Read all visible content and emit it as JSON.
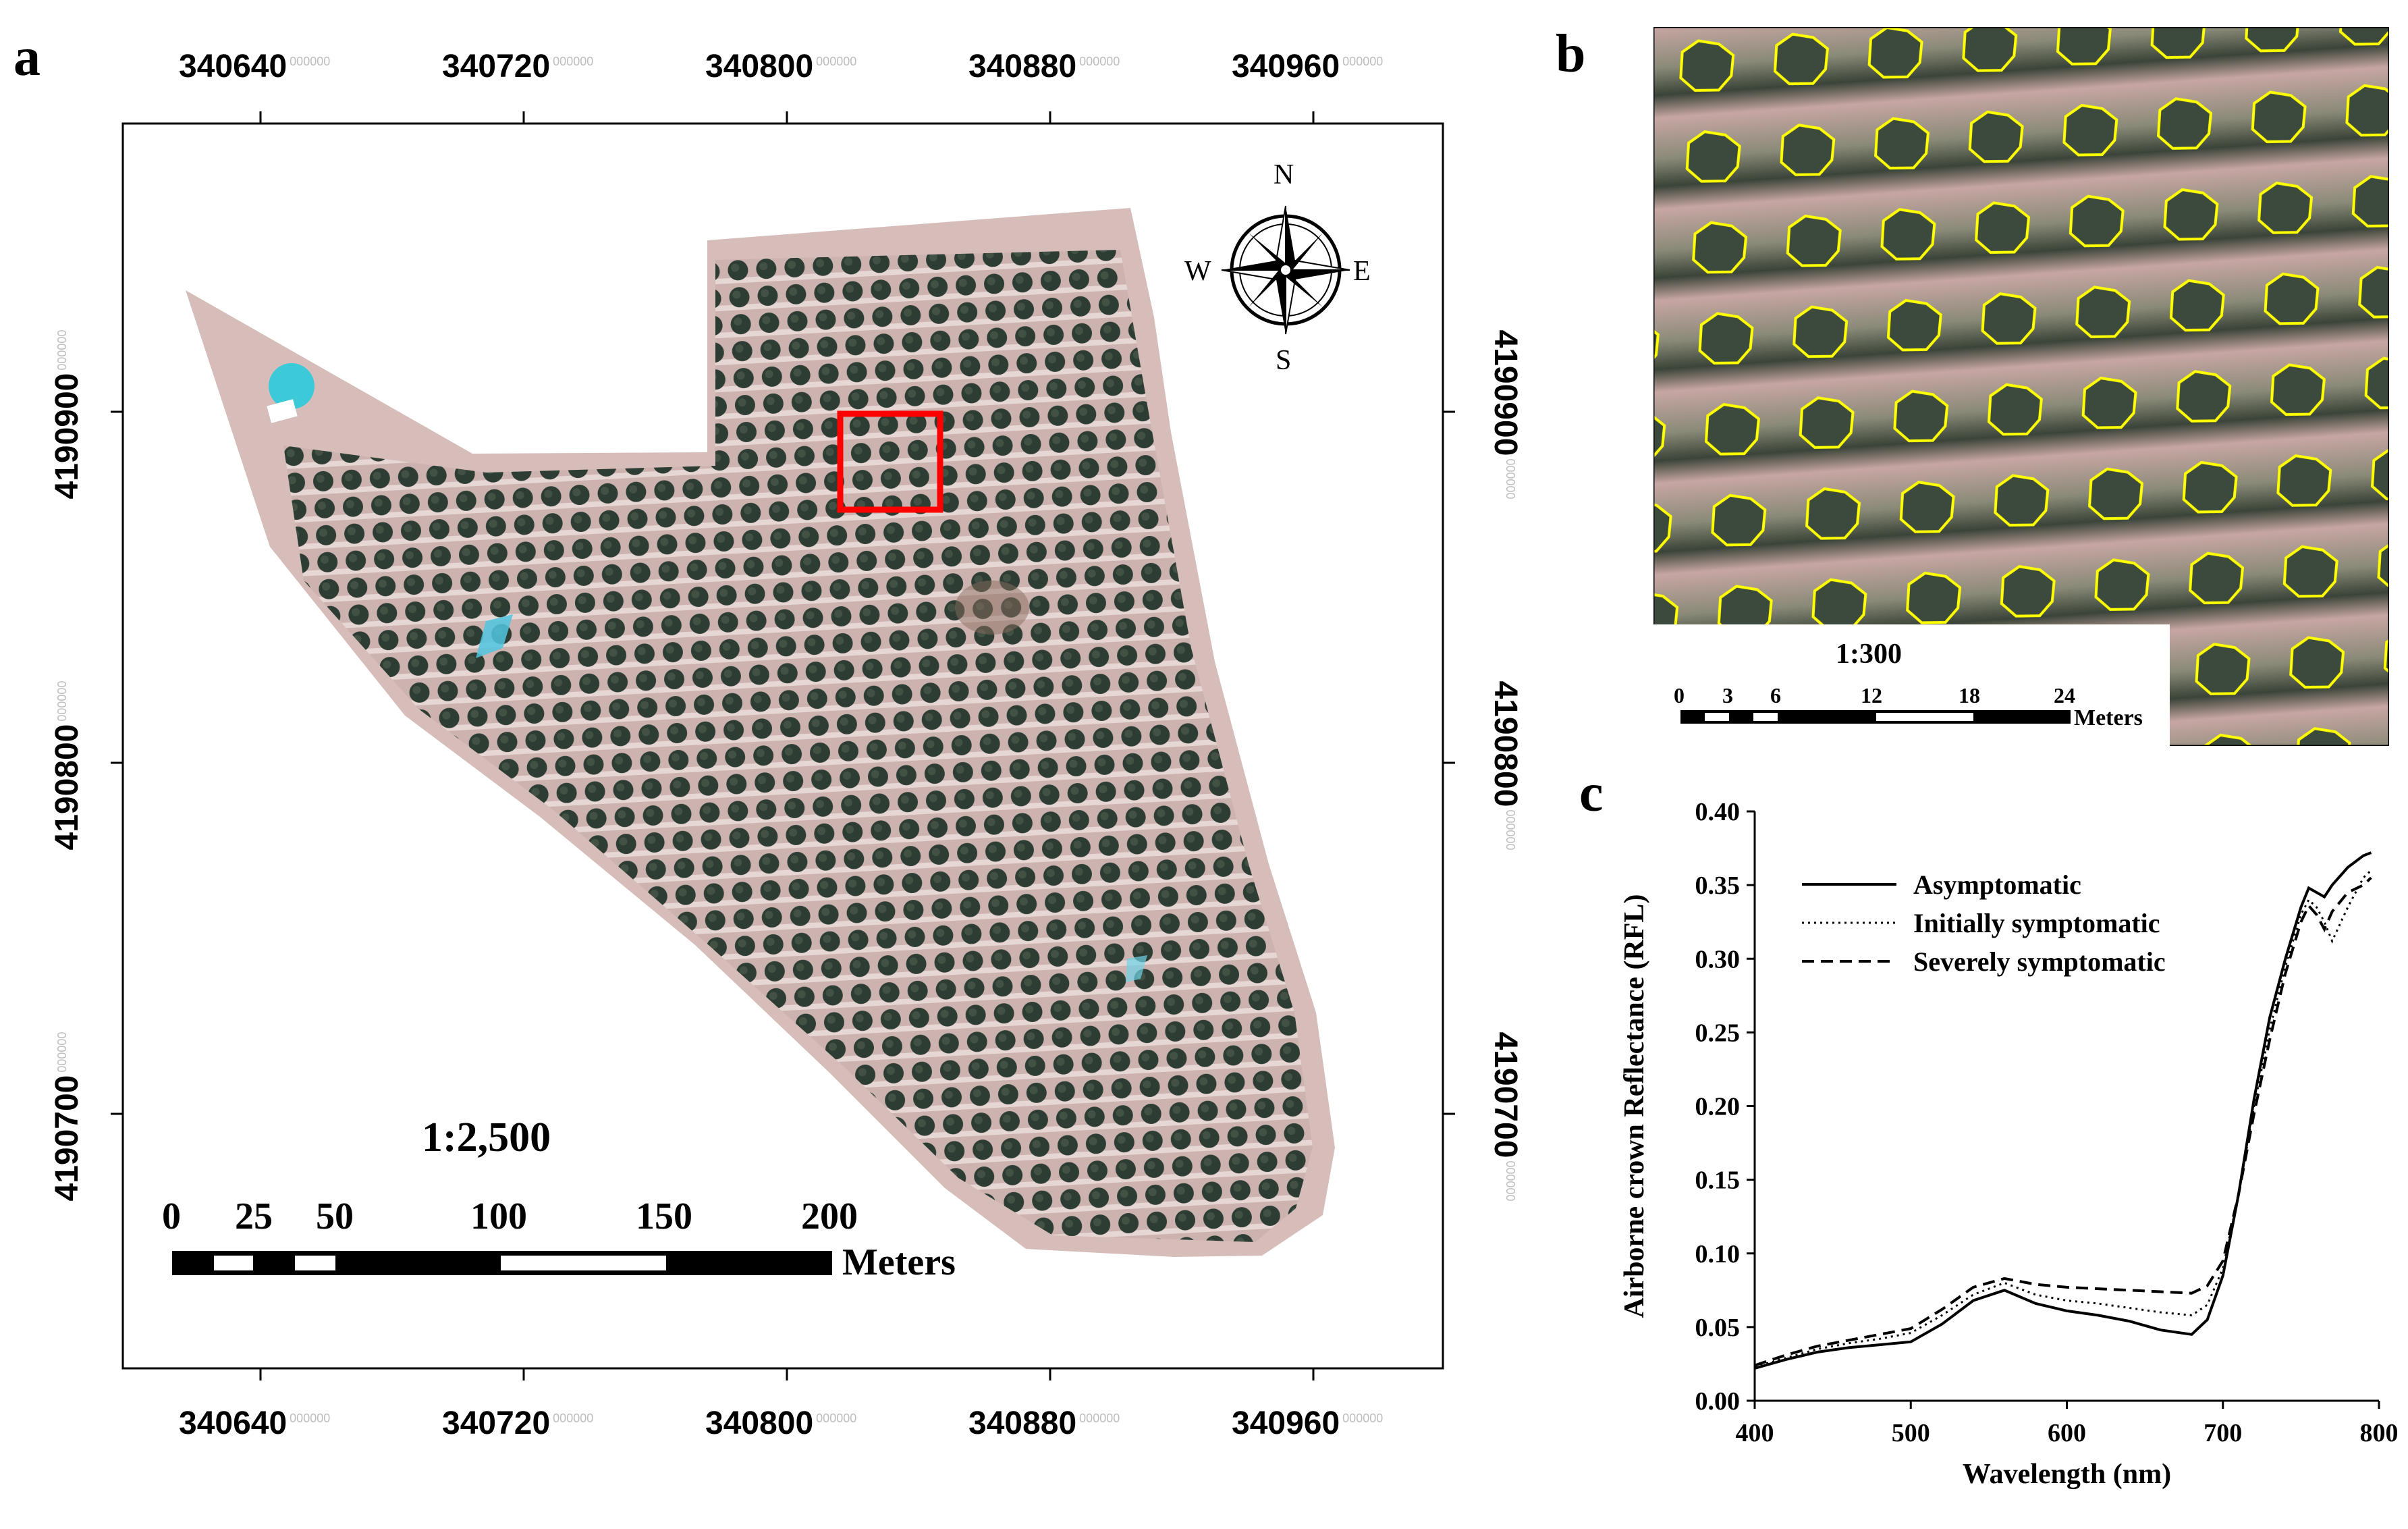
{
  "panel_a": {
    "letter": "a",
    "x_ticks_top": [
      {
        "label": "340640",
        "sup": "000000"
      },
      {
        "label": "340720",
        "sup": "000000"
      },
      {
        "label": "340800",
        "sup": "000000"
      },
      {
        "label": "340880",
        "sup": "000000"
      },
      {
        "label": "340960",
        "sup": "000000"
      }
    ],
    "x_ticks_bottom": [
      {
        "label": "340640",
        "sup": "000000"
      },
      {
        "label": "340720",
        "sup": "000000"
      },
      {
        "label": "340800",
        "sup": "000000"
      },
      {
        "label": "340880",
        "sup": "000000"
      },
      {
        "label": "340960",
        "sup": "000000"
      }
    ],
    "y_ticks_left": [
      {
        "label": "4190900",
        "sup": "000000"
      },
      {
        "label": "4190800",
        "sup": "000000"
      },
      {
        "label": "4190700",
        "sup": "000000"
      }
    ],
    "y_ticks_right": [
      {
        "label": "4190900",
        "sup": "000000"
      },
      {
        "label": "4190800",
        "sup": "000000"
      },
      {
        "label": "4190700",
        "sup": "000000"
      }
    ],
    "scale_text": "1:2,500",
    "scalebar_labels": [
      "0",
      "25",
      "50",
      "100",
      "150",
      "200"
    ],
    "scalebar_unit": "Meters",
    "compass": {
      "n": "N",
      "s": "S",
      "e": "E",
      "w": "W"
    },
    "colors": {
      "highlight_box": "#ff0000",
      "canopy": "#2f3f35",
      "soil": "#c9a9a6",
      "water": "#3cc9d8"
    }
  },
  "panel_b": {
    "letter": "b",
    "scale_text": "1:300",
    "scalebar_labels": [
      "0",
      "3",
      "6",
      "12",
      "18",
      "24"
    ],
    "scalebar_unit": "Meters",
    "colors": {
      "crown_outline": "#ffff00"
    }
  },
  "panel_c": {
    "letter": "c",
    "chart_data": {
      "type": "line",
      "title": "",
      "xlabel": "Wavelength (nm)",
      "ylabel": "Airborne crown Reflectance (RFL)",
      "xlim": [
        400,
        800
      ],
      "ylim": [
        0.0,
        0.4
      ],
      "x_tick_labels": [
        "400",
        "500",
        "600",
        "700",
        "800"
      ],
      "y_tick_labels": [
        "0.00",
        "0.05",
        "0.10",
        "0.15",
        "0.20",
        "0.25",
        "0.30",
        "0.35",
        "0.40"
      ],
      "legend_position": "top-left",
      "series": [
        {
          "name": "Asymptomatic",
          "style": "solid",
          "x": [
            400,
            420,
            440,
            460,
            480,
            500,
            520,
            540,
            560,
            580,
            600,
            620,
            640,
            660,
            680,
            690,
            700,
            710,
            720,
            730,
            740,
            750,
            755,
            760,
            765,
            770,
            780,
            790,
            795
          ],
          "y": [
            0.022,
            0.028,
            0.033,
            0.036,
            0.038,
            0.04,
            0.052,
            0.068,
            0.075,
            0.066,
            0.061,
            0.058,
            0.054,
            0.048,
            0.045,
            0.055,
            0.085,
            0.14,
            0.205,
            0.26,
            0.3,
            0.335,
            0.348,
            0.345,
            0.342,
            0.35,
            0.362,
            0.37,
            0.372
          ]
        },
        {
          "name": "Initially symptomatic",
          "style": "dotted",
          "x": [
            400,
            420,
            440,
            460,
            480,
            500,
            520,
            540,
            560,
            580,
            600,
            620,
            640,
            660,
            680,
            690,
            700,
            710,
            720,
            730,
            740,
            750,
            755,
            760,
            765,
            770,
            780,
            790,
            795
          ],
          "y": [
            0.023,
            0.029,
            0.035,
            0.039,
            0.042,
            0.046,
            0.058,
            0.072,
            0.08,
            0.072,
            0.068,
            0.066,
            0.063,
            0.06,
            0.058,
            0.065,
            0.09,
            0.14,
            0.2,
            0.252,
            0.295,
            0.33,
            0.34,
            0.335,
            0.325,
            0.312,
            0.335,
            0.355,
            0.36
          ]
        },
        {
          "name": "Severely symptomatic",
          "style": "dashed",
          "x": [
            400,
            420,
            440,
            460,
            480,
            500,
            520,
            540,
            560,
            580,
            600,
            620,
            640,
            660,
            680,
            690,
            700,
            710,
            720,
            730,
            740,
            750,
            755,
            760,
            765,
            770,
            780,
            790,
            795
          ],
          "y": [
            0.024,
            0.031,
            0.037,
            0.041,
            0.045,
            0.049,
            0.062,
            0.077,
            0.083,
            0.079,
            0.077,
            0.076,
            0.075,
            0.074,
            0.073,
            0.078,
            0.095,
            0.14,
            0.195,
            0.245,
            0.29,
            0.325,
            0.336,
            0.33,
            0.32,
            0.332,
            0.345,
            0.35,
            0.355
          ]
        }
      ]
    }
  }
}
